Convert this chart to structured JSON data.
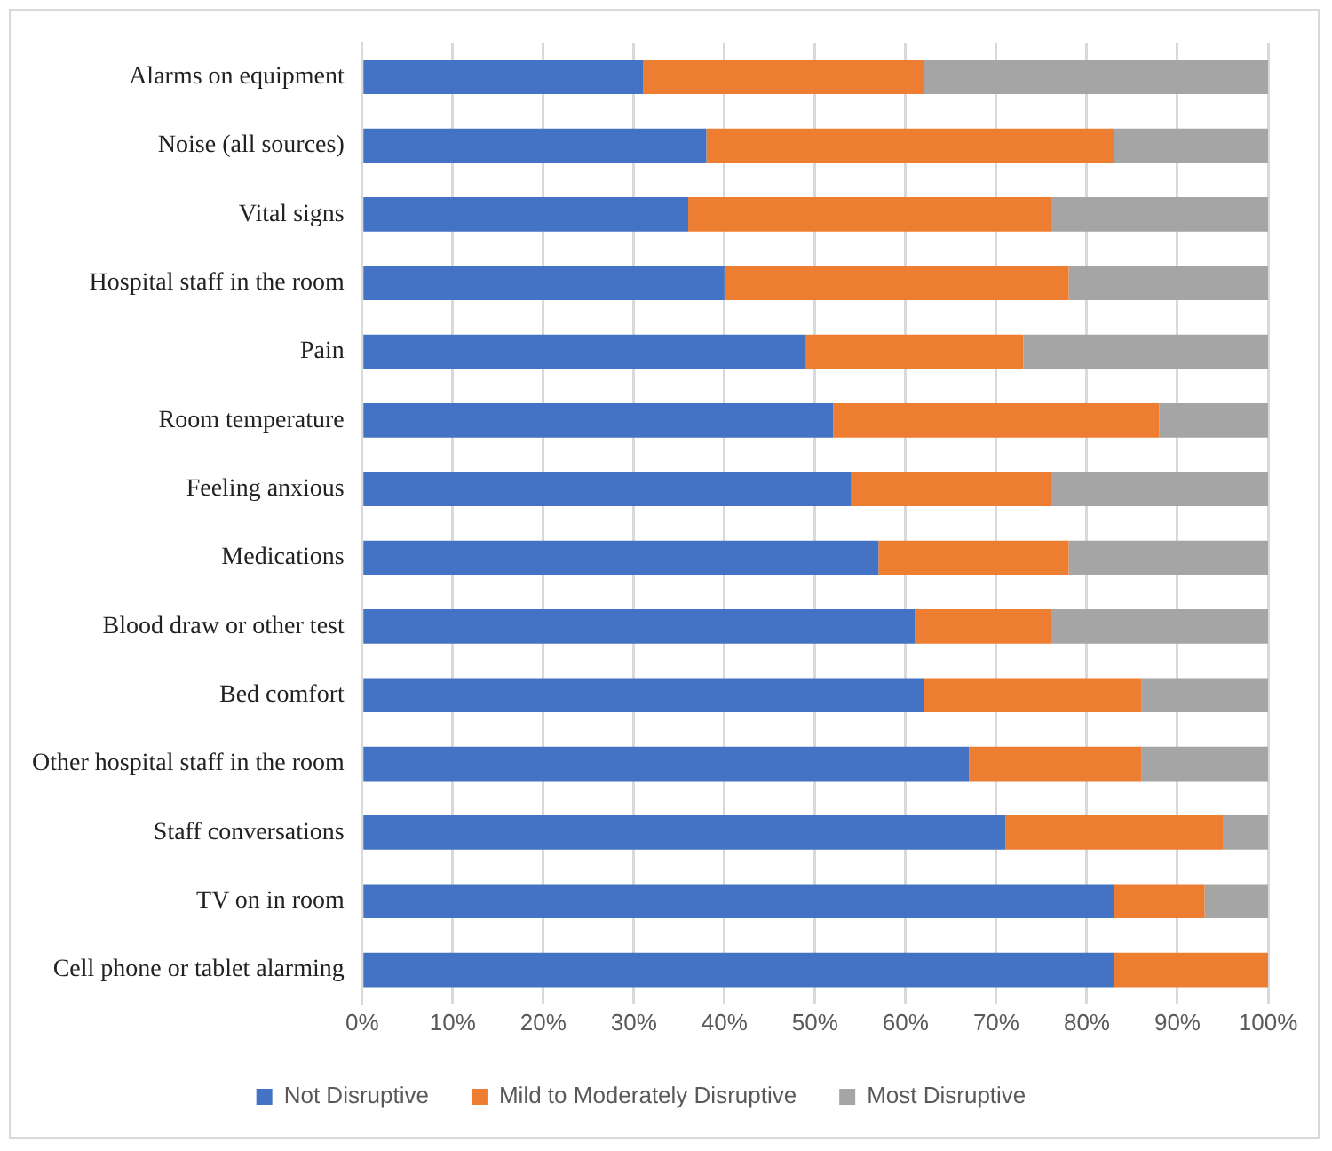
{
  "chart_data": {
    "type": "bar",
    "orientation": "horizontal",
    "stacked": true,
    "categories": [
      "Alarms on equipment",
      "Noise (all sources)",
      "Vital signs",
      "Hospital staff in the room",
      "Pain",
      "Room temperature",
      "Feeling anxious",
      "Medications",
      "Blood draw or other test",
      "Bed comfort",
      "Other hospital staff in the room",
      "Staff conversations",
      "TV on in room",
      "Cell phone or tablet alarming"
    ],
    "series": [
      {
        "name": "Not Disruptive",
        "color": "#4472c4",
        "values": [
          31,
          38,
          36,
          40,
          49,
          52,
          54,
          57,
          61,
          62,
          67,
          71,
          83,
          83
        ]
      },
      {
        "name": "Mild to Moderately Disruptive",
        "color": "#ed7d31",
        "values": [
          31,
          45,
          40,
          38,
          24,
          36,
          22,
          21,
          15,
          24,
          19,
          24,
          10,
          17
        ]
      },
      {
        "name": "Most Disruptive",
        "color": "#a5a5a5",
        "values": [
          38,
          17,
          24,
          22,
          27,
          12,
          24,
          22,
          24,
          14,
          14,
          5,
          7,
          0
        ]
      }
    ],
    "xlim": [
      0,
      100
    ],
    "xticks": [
      {
        "value": 0,
        "label": "0%"
      },
      {
        "value": 10,
        "label": "10%"
      },
      {
        "value": 20,
        "label": "20%"
      },
      {
        "value": 30,
        "label": "30%"
      },
      {
        "value": 40,
        "label": "40%"
      },
      {
        "value": 50,
        "label": "50%"
      },
      {
        "value": 60,
        "label": "60%"
      },
      {
        "value": 70,
        "label": "70%"
      },
      {
        "value": 80,
        "label": "80%"
      },
      {
        "value": 90,
        "label": "90%"
      },
      {
        "value": 100,
        "label": "100%"
      }
    ],
    "grid": "x",
    "legend": "bottom"
  }
}
